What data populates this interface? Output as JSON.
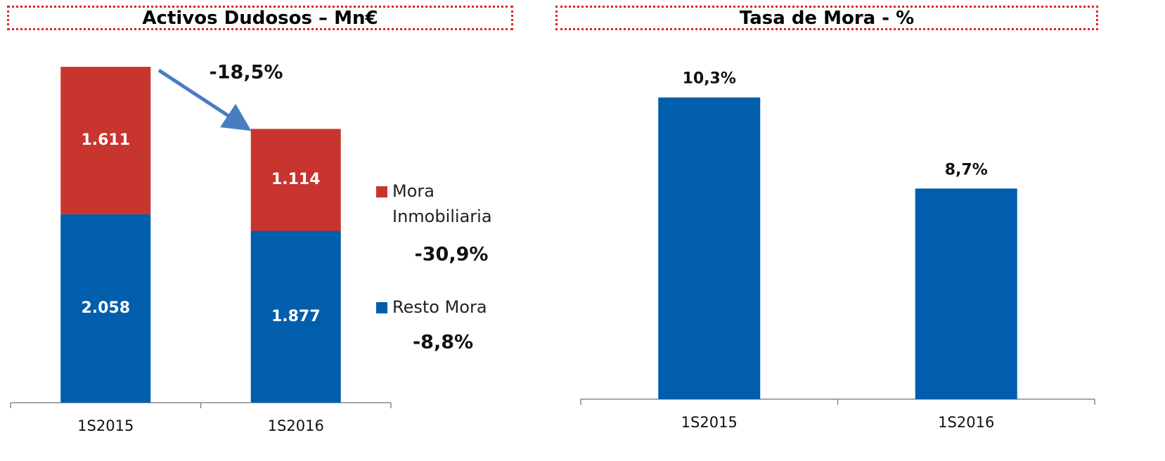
{
  "chart_data": [
    {
      "type": "bar",
      "stacked": true,
      "title": "Activos Dudosos – Mn€",
      "categories": [
        "1S2015",
        "1S2016"
      ],
      "series": [
        {
          "name": "Resto Mora",
          "color": "#005eac",
          "values": [
            2058,
            1877
          ],
          "value_labels": [
            "2.058",
            "1.877"
          ]
        },
        {
          "name": "Mora Inmobiliaria",
          "color": "#c8352f",
          "values": [
            1611,
            1114
          ],
          "value_labels": [
            "1.611",
            "1.114"
          ]
        }
      ],
      "ylim": [
        0,
        4000
      ],
      "annotations": [
        "-18,5%",
        "-30,9%",
        "-8,8%"
      ]
    },
    {
      "type": "bar",
      "title": "Tasa de Mora - %",
      "categories": [
        "1S2015",
        "1S2016"
      ],
      "values": [
        10.3,
        8.7
      ],
      "value_labels": [
        "10,3%",
        "8,7%"
      ],
      "color": "#005eac",
      "ylim": [
        5,
        11
      ]
    }
  ]
}
